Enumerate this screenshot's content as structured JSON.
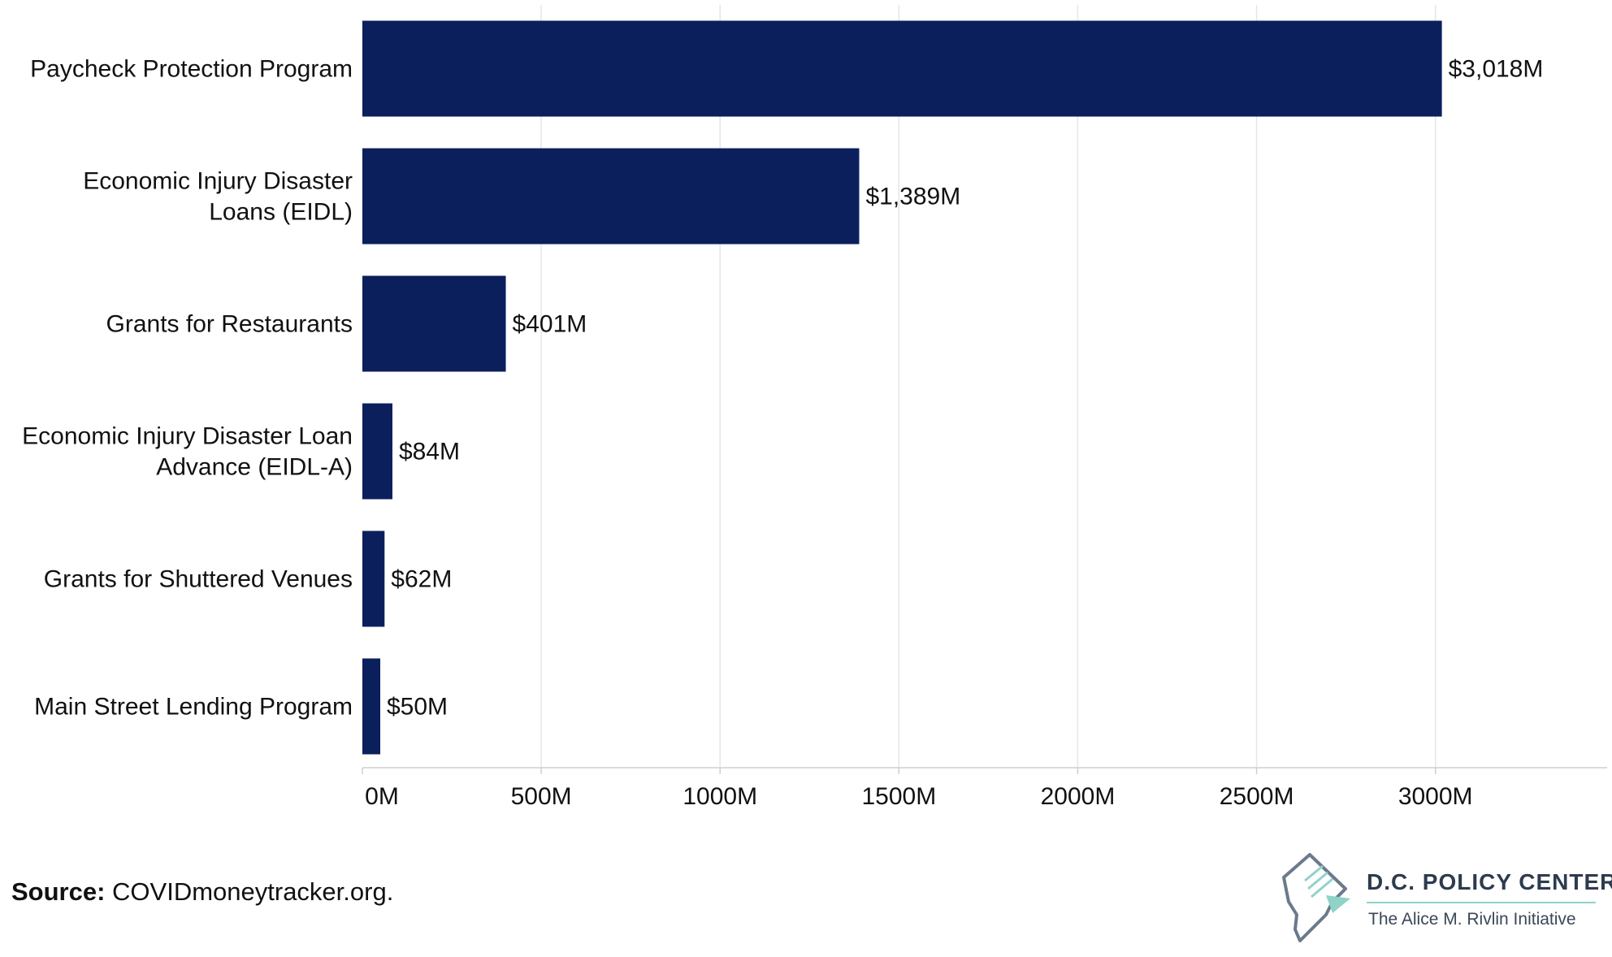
{
  "chart_data": {
    "type": "bar",
    "orientation": "horizontal",
    "categories": [
      [
        "Paycheck Protection Program"
      ],
      [
        "Economic Injury Disaster",
        "Loans (EIDL)"
      ],
      [
        "Grants for Restaurants"
      ],
      [
        "Economic Injury Disaster Loan",
        "Advance (EIDL-A)"
      ],
      [
        "Grants for Shuttered Venues"
      ],
      [
        "Main Street Lending Program"
      ]
    ],
    "values": [
      3018,
      1389,
      401,
      84,
      62,
      50
    ],
    "value_labels": [
      "$3,018M",
      "$1,389M",
      "$401M",
      "$84M",
      "$62M",
      "$50M"
    ],
    "xlim": [
      0,
      3480
    ],
    "xticks": [
      0,
      500,
      1000,
      1500,
      2000,
      2500,
      3000
    ],
    "xtick_labels": [
      "0M",
      "500M",
      "1000M",
      "1500M",
      "2000M",
      "2500M",
      "3000M"
    ],
    "grid": "vertical",
    "bar_color": "#0b1f5c"
  },
  "source": {
    "label": "Source:",
    "text": " COVIDmoneytracker.org."
  },
  "logo": {
    "title": "D.C. POLICY CENTER",
    "subtitle": "The Alice M. Rivlin Initiative"
  }
}
